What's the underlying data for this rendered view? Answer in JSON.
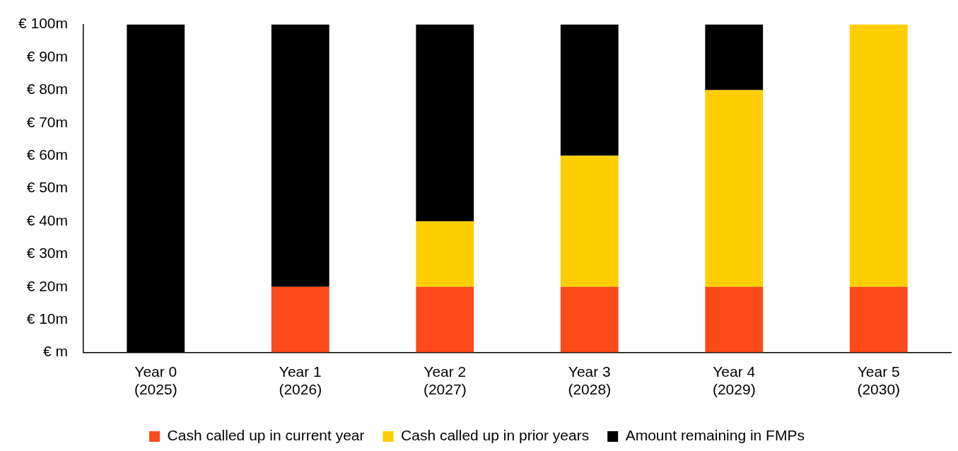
{
  "chart_data": {
    "type": "bar",
    "stacked": true,
    "categories": [
      "Year 0\n(2025)",
      "Year 1\n(2026)",
      "Year 2\n(2027)",
      "Year 3\n(2028)",
      "Year 4\n(2029)",
      "Year 5\n(2030)"
    ],
    "series": [
      {
        "name": "Cash called up in current year",
        "color": "#fc4a1a",
        "values": [
          0,
          20,
          20,
          20,
          20,
          20
        ]
      },
      {
        "name": "Cash called up in prior years",
        "color": "#ffce00",
        "values": [
          0,
          0,
          20,
          40,
          60,
          80
        ]
      },
      {
        "name": "Amount remaining in FMPs",
        "color": "#000000",
        "values": [
          100,
          80,
          60,
          40,
          20,
          0
        ]
      }
    ],
    "ylim": [
      0,
      100
    ],
    "yticks": [
      {
        "value": 0,
        "label": "€ m"
      },
      {
        "value": 10,
        "label": "€ 10m"
      },
      {
        "value": 20,
        "label": "€ 20m"
      },
      {
        "value": 30,
        "label": "€ 30m"
      },
      {
        "value": 40,
        "label": "€ 40m"
      },
      {
        "value": 50,
        "label": "€ 50m"
      },
      {
        "value": 60,
        "label": "€ 60m"
      },
      {
        "value": 70,
        "label": "€ 70m"
      },
      {
        "value": 80,
        "label": "€ 80m"
      },
      {
        "value": 90,
        "label": "€ 90m"
      },
      {
        "value": 100,
        "label": "€ 100m"
      }
    ],
    "grid": false,
    "legend": "bottom"
  }
}
